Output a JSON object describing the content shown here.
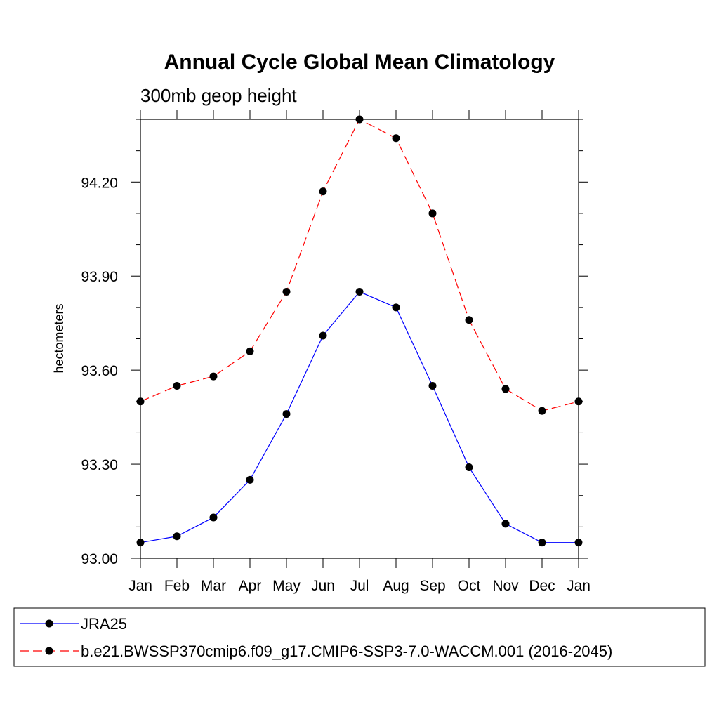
{
  "chart_data": {
    "type": "line",
    "title": "Annual Cycle Global Mean Climatology",
    "subtitle": "300mb geop height",
    "xlabel": "",
    "ylabel": "hectometers",
    "categories": [
      "Jan",
      "Feb",
      "Mar",
      "Apr",
      "May",
      "Jun",
      "Jul",
      "Aug",
      "Sep",
      "Oct",
      "Nov",
      "Dec",
      "Jan"
    ],
    "ylim": [
      93.0,
      94.4
    ],
    "yticks": [
      93.0,
      93.3,
      93.6,
      93.9,
      94.2
    ],
    "ytick_labels": [
      "93.00",
      "93.30",
      "93.60",
      "93.90",
      "94.20"
    ],
    "series": [
      {
        "name": "JRA25",
        "color": "#0000ff",
        "style": "solid",
        "values": [
          93.05,
          93.07,
          93.13,
          93.25,
          93.46,
          93.71,
          93.85,
          93.8,
          93.55,
          93.29,
          93.11,
          93.05,
          93.05
        ]
      },
      {
        "name": "b.e21.BWSSP370cmip6.f09_g17.CMIP6-SSP3-7.0-WACCM.001 (2016-2045)",
        "color": "#ff0000",
        "style": "dashed",
        "values": [
          93.5,
          93.55,
          93.58,
          93.66,
          93.85,
          94.17,
          94.4,
          94.34,
          94.1,
          93.76,
          93.54,
          93.47,
          93.5
        ]
      }
    ],
    "legend_position": "bottom",
    "grid": false
  }
}
